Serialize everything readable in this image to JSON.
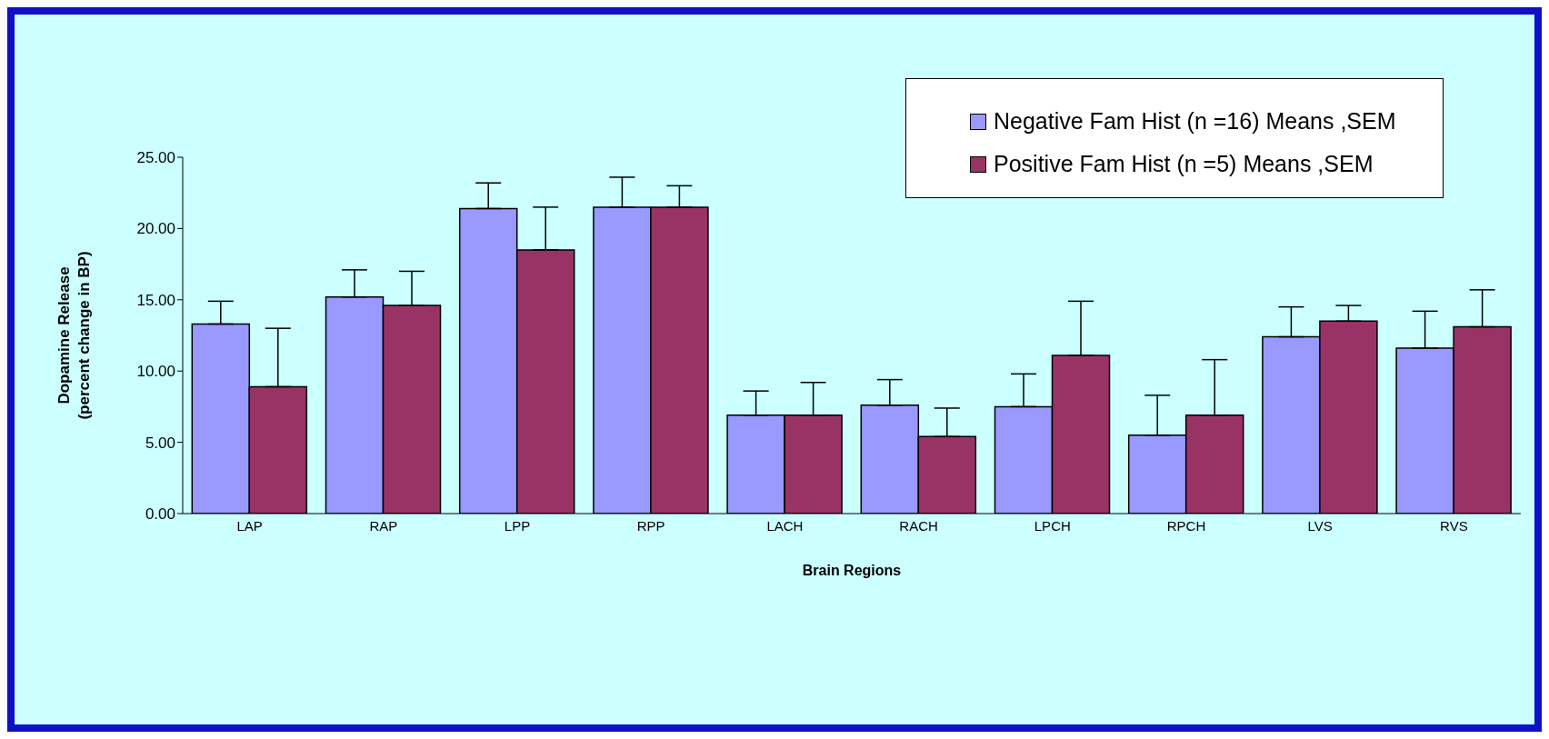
{
  "chart_data": {
    "type": "bar",
    "xlabel": "Brain Regions",
    "ylabel": "Dopamine Release\n(percent change in BP)",
    "categories": [
      "LAP",
      "RAP",
      "LPP",
      "RPP",
      "LACH",
      "RACH",
      "LPCH",
      "RPCH",
      "LVS",
      "RVS"
    ],
    "series": [
      {
        "name": "Negative Fam Hist  (n =16) Means ,SEM",
        "color": "#9999ff",
        "values": [
          13.3,
          15.2,
          21.4,
          21.5,
          6.9,
          7.6,
          7.5,
          5.5,
          12.4,
          11.6
        ],
        "errors": [
          [
            13.3,
            14.9
          ],
          [
            15.2,
            17.1
          ],
          [
            21.4,
            23.2
          ],
          [
            21.5,
            23.6
          ],
          [
            6.9,
            8.6
          ],
          [
            7.6,
            9.4
          ],
          [
            7.5,
            9.8
          ],
          [
            5.5,
            8.3
          ],
          [
            12.4,
            14.5
          ],
          [
            11.6,
            14.2
          ]
        ]
      },
      {
        "name": "Positive Fam Hist  (n =5) Means ,SEM",
        "color": "#993366",
        "values": [
          8.9,
          14.6,
          18.5,
          21.5,
          6.9,
          5.4,
          11.1,
          6.9,
          13.5,
          13.1
        ],
        "errors": [
          [
            8.9,
            13.0
          ],
          [
            14.6,
            17.0
          ],
          [
            18.5,
            21.5
          ],
          [
            21.5,
            23.0
          ],
          [
            6.9,
            9.2
          ],
          [
            5.4,
            7.4
          ],
          [
            11.1,
            14.9
          ],
          [
            6.9,
            10.8
          ],
          [
            13.5,
            14.6
          ],
          [
            13.1,
            15.7
          ]
        ]
      }
    ],
    "ylim": [
      0,
      25
    ],
    "yticks": [
      {
        "value": 0,
        "label": "0.00"
      },
      {
        "value": 5,
        "label": "5.00"
      },
      {
        "value": 10,
        "label": "10.00"
      },
      {
        "value": 15,
        "label": "15.00"
      },
      {
        "value": 20,
        "label": "20.00"
      },
      {
        "value": 25,
        "label": "25.00"
      }
    ],
    "grid": false,
    "legend": "top right"
  }
}
